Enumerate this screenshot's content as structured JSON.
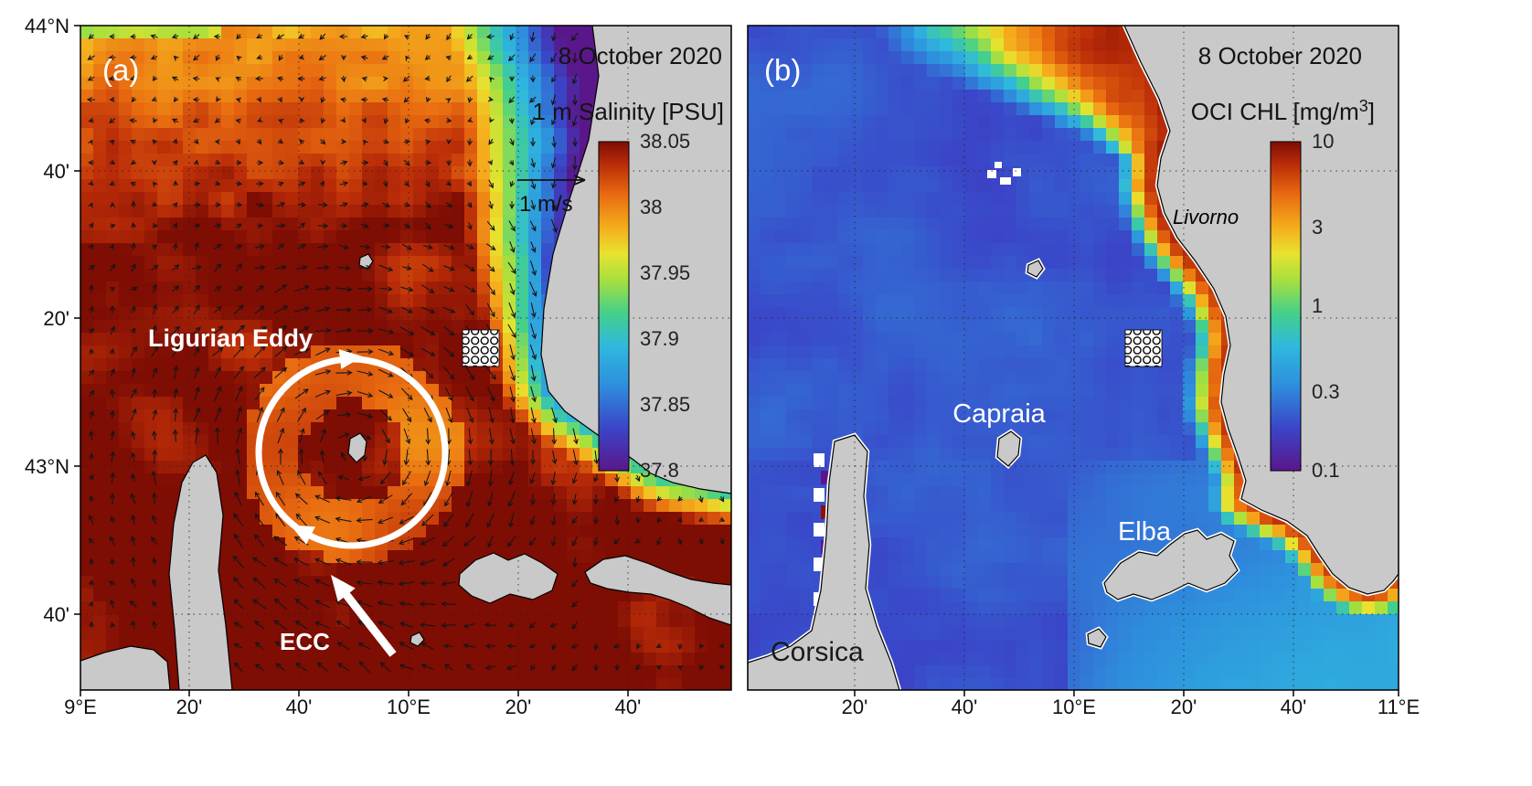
{
  "figure": {
    "panels": {
      "a": {
        "label": "(a)",
        "date": "8 October 2020",
        "title": "1 m Salinity [PSU]",
        "scale_label": "1 m/s",
        "eddy_label": "Ligurian Eddy",
        "ecc_label": "ECC",
        "colorbar_ticks": [
          "38.05",
          "38",
          "37.95",
          "37.9",
          "37.85",
          "37.8"
        ],
        "x_ticks": [
          "9°E",
          "20'",
          "40'",
          "10°E",
          "20'",
          "40'"
        ],
        "y_ticks": [
          "44°N",
          "40'",
          "20'",
          "43°N",
          "40'"
        ]
      },
      "b": {
        "label": "(b)",
        "date": "8 October 2020",
        "title_prefix": "OCI CHL [mg/m",
        "title_sup": "3",
        "title_suffix": "]",
        "colorbar_ticks": [
          "10",
          "3",
          "1",
          "0.3",
          "0.1"
        ],
        "x_ticks": [
          "20'",
          "40'",
          "10°E",
          "20'",
          "40'",
          "11°E"
        ],
        "places": {
          "livorno": "Livorno",
          "capraia": "Capraia",
          "elba": "Elba",
          "corsica": "Corsica"
        }
      }
    }
  },
  "chart_data": [
    {
      "type": "heatmap",
      "panel": "(a)",
      "title": "1 m Salinity [PSU]",
      "date": "8 October 2020",
      "x_axis": {
        "ticks": [
          "9°E",
          "20'",
          "40'",
          "10°E",
          "20'",
          "40'"
        ]
      },
      "y_axis": {
        "ticks": [
          "44°N",
          "40'",
          "20'",
          "43°N",
          "40'"
        ]
      },
      "colorbar": {
        "units": "PSU",
        "scale": "linear",
        "range": [
          37.8,
          38.05
        ],
        "ticks": [
          38.05,
          38,
          37.95,
          37.9,
          37.85,
          37.8
        ],
        "orientation": "vertical"
      },
      "overlays": [
        "surface current vector field with 1 m/s reference arrow",
        "Ligurian Eddy marked by white clockwise circular arrow",
        "ECC white arrow pointing north-west",
        "dotted square station marker"
      ],
      "field_description": "salinity >= 38 over most of the basin (orange to dark red), freshest water 37.8-37.9 (purple/blue/cyan bands) in a plume along the north-east coast"
    },
    {
      "type": "heatmap",
      "panel": "(b)",
      "title": "OCI CHL [mg/m³]",
      "date": "8 October 2020",
      "x_axis": {
        "ticks": [
          "20'",
          "40'",
          "10°E",
          "20'",
          "40'",
          "11°E"
        ]
      },
      "colorbar": {
        "units": "mg/m³",
        "scale": "log",
        "range": [
          0.1,
          10
        ],
        "ticks": [
          10,
          3,
          1,
          0.3,
          0.1
        ],
        "orientation": "vertical"
      },
      "labels": [
        "Livorno",
        "Capraia",
        "Elba",
        "Corsica"
      ],
      "overlays": [
        "dotted square station marker"
      ],
      "field_description": "low chlorophyll ~0.2 offshore (deep blue), high chlorophyll 1-10 (green/orange) along the north-east coast and north, cyan filaments around Elba"
    }
  ]
}
